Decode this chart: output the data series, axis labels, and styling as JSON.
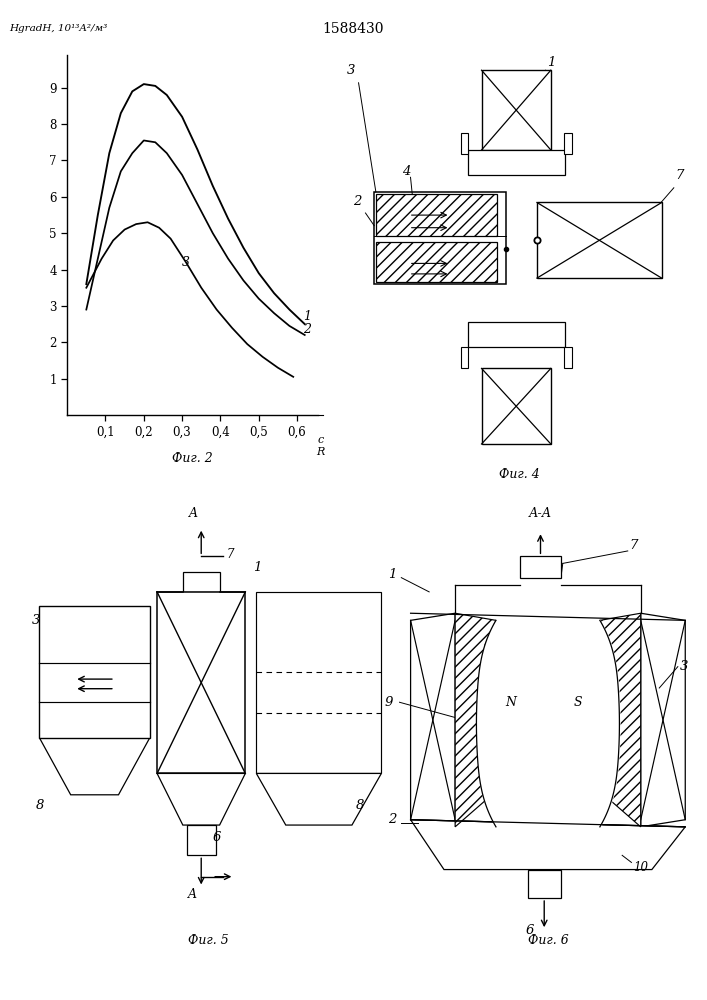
{
  "title": "1588430",
  "fig2_caption": "Фиг. 2",
  "fig4_caption": "Фиг. 4",
  "fig5_caption": "Фиг. 5",
  "fig6_caption": "Фиг. 6",
  "curve1_x": [
    0.05,
    0.08,
    0.11,
    0.14,
    0.17,
    0.2,
    0.23,
    0.26,
    0.3,
    0.34,
    0.38,
    0.42,
    0.46,
    0.5,
    0.54,
    0.58,
    0.62
  ],
  "curve1_y": [
    3.6,
    5.5,
    7.2,
    8.3,
    8.9,
    9.1,
    9.05,
    8.8,
    8.2,
    7.3,
    6.3,
    5.4,
    4.6,
    3.9,
    3.35,
    2.9,
    2.5
  ],
  "curve2_x": [
    0.05,
    0.08,
    0.11,
    0.14,
    0.17,
    0.2,
    0.23,
    0.26,
    0.3,
    0.34,
    0.38,
    0.42,
    0.46,
    0.5,
    0.54,
    0.58,
    0.62
  ],
  "curve2_y": [
    2.9,
    4.3,
    5.7,
    6.7,
    7.2,
    7.55,
    7.5,
    7.2,
    6.6,
    5.8,
    5.0,
    4.3,
    3.7,
    3.2,
    2.8,
    2.45,
    2.2
  ],
  "curve3_x": [
    0.05,
    0.09,
    0.12,
    0.15,
    0.18,
    0.21,
    0.24,
    0.27,
    0.31,
    0.35,
    0.39,
    0.43,
    0.47,
    0.51,
    0.55,
    0.59
  ],
  "curve3_y": [
    3.5,
    4.3,
    4.8,
    5.1,
    5.25,
    5.3,
    5.15,
    4.85,
    4.2,
    3.5,
    2.9,
    2.4,
    1.95,
    1.6,
    1.3,
    1.05
  ],
  "fig2_yticks": [
    1,
    2,
    3,
    4,
    5,
    6,
    7,
    8,
    9
  ],
  "fig2_xtick_vals": [
    0.1,
    0.2,
    0.3,
    0.4,
    0.5,
    0.6
  ],
  "fig2_xtick_labels": [
    "0,1",
    "0,2",
    "0,3",
    "0,4",
    "0,5",
    "0,6"
  ]
}
